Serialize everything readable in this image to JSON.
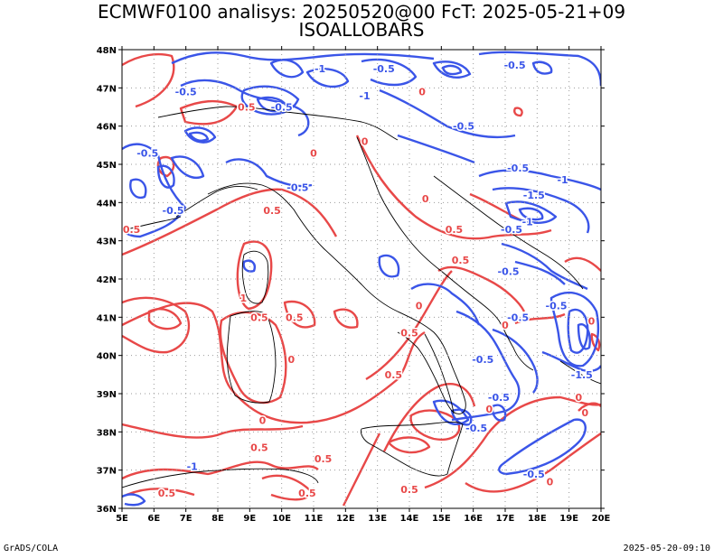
{
  "header": {
    "title_line1": "ECMWF0100 analisys: 20250520@00 FcT: 2025-05-21+09",
    "title_line2": "ISOALLOBARS"
  },
  "footer": {
    "left": "GrADS/COLA",
    "right": "2025-05-20-09:10"
  },
  "axes": {
    "lon_ticks": [
      "5E",
      "6E",
      "7E",
      "8E",
      "9E",
      "10E",
      "11E",
      "12E",
      "13E",
      "14E",
      "15E",
      "16E",
      "17E",
      "18E",
      "19E",
      "20E"
    ],
    "lat_ticks": [
      "48N",
      "47N",
      "46N",
      "45N",
      "44N",
      "43N",
      "42N",
      "41N",
      "40N",
      "39N",
      "38N",
      "37N",
      "36N"
    ]
  },
  "colors": {
    "negative_contour": "#3a55e8",
    "positive_contour": "#e84848",
    "coastline": "#000000",
    "grid": "#9a9a9a"
  },
  "contour_labels": [
    {
      "text": "-0.5",
      "sign": "neg",
      "lon": 10.0,
      "lat": 46.5
    },
    {
      "text": "-1",
      "sign": "neg",
      "lon": 11.2,
      "lat": 47.5
    },
    {
      "text": "-0.5",
      "sign": "neg",
      "lon": 13.2,
      "lat": 47.5
    },
    {
      "text": "-0.5",
      "sign": "neg",
      "lon": 17.3,
      "lat": 47.6
    },
    {
      "text": "-0.5",
      "sign": "neg",
      "lon": 7.0,
      "lat": 46.9
    },
    {
      "text": "0.5",
      "sign": "pos",
      "lon": 8.9,
      "lat": 46.5
    },
    {
      "text": "-1",
      "sign": "neg",
      "lon": 12.6,
      "lat": 46.8
    },
    {
      "text": "0",
      "sign": "pos",
      "lon": 14.4,
      "lat": 46.9
    },
    {
      "text": "-0.5",
      "sign": "neg",
      "lon": 15.7,
      "lat": 46.0
    },
    {
      "text": "-0.5",
      "sign": "neg",
      "lon": 5.8,
      "lat": 45.3
    },
    {
      "text": "-0.5",
      "sign": "neg",
      "lon": 6.6,
      "lat": 43.8
    },
    {
      "text": "0.5",
      "sign": "pos",
      "lon": 5.3,
      "lat": 43.3
    },
    {
      "text": "0",
      "sign": "pos",
      "lon": 11.0,
      "lat": 45.3
    },
    {
      "text": "0",
      "sign": "pos",
      "lon": 12.6,
      "lat": 45.6
    },
    {
      "text": "0.5",
      "sign": "pos",
      "lon": 9.7,
      "lat": 43.8
    },
    {
      "text": "-0.5",
      "sign": "neg",
      "lon": 10.5,
      "lat": 44.4
    },
    {
      "text": "-0.5",
      "sign": "neg",
      "lon": 17.4,
      "lat": 44.9
    },
    {
      "text": "-1",
      "sign": "neg",
      "lon": 18.8,
      "lat": 44.6
    },
    {
      "text": "-1.5",
      "sign": "neg",
      "lon": 17.9,
      "lat": 44.2
    },
    {
      "text": "-1",
      "sign": "neg",
      "lon": 17.7,
      "lat": 43.5
    },
    {
      "text": "0",
      "sign": "pos",
      "lon": 14.5,
      "lat": 44.1
    },
    {
      "text": "0.5",
      "sign": "pos",
      "lon": 15.4,
      "lat": 43.3
    },
    {
      "text": "-0.5",
      "sign": "neg",
      "lon": 17.2,
      "lat": 43.3
    },
    {
      "text": "-0.5",
      "sign": "neg",
      "lon": 17.1,
      "lat": 42.2
    },
    {
      "text": "0.5",
      "sign": "pos",
      "lon": 15.6,
      "lat": 42.5
    },
    {
      "text": "1",
      "sign": "pos",
      "lon": 8.8,
      "lat": 41.5
    },
    {
      "text": "0.5",
      "sign": "pos",
      "lon": 9.3,
      "lat": 41.0
    },
    {
      "text": "0.5",
      "sign": "pos",
      "lon": 10.4,
      "lat": 41.0
    },
    {
      "text": "0",
      "sign": "pos",
      "lon": 14.3,
      "lat": 41.3
    },
    {
      "text": "0.5",
      "sign": "pos",
      "lon": 14.0,
      "lat": 40.6
    },
    {
      "text": "0",
      "sign": "pos",
      "lon": 10.3,
      "lat": 39.9
    },
    {
      "text": "0.5",
      "sign": "pos",
      "lon": 13.5,
      "lat": 39.5
    },
    {
      "text": "-0.5",
      "sign": "neg",
      "lon": 16.3,
      "lat": 39.9
    },
    {
      "text": "-0.5",
      "sign": "neg",
      "lon": 17.4,
      "lat": 41.0
    },
    {
      "text": "0",
      "sign": "pos",
      "lon": 17.0,
      "lat": 40.8
    },
    {
      "text": "-1.5",
      "sign": "neg",
      "lon": 19.4,
      "lat": 39.5
    },
    {
      "text": "-0.5",
      "sign": "neg",
      "lon": 18.6,
      "lat": 41.3
    },
    {
      "text": "0",
      "sign": "pos",
      "lon": 19.7,
      "lat": 40.9
    },
    {
      "text": "0",
      "sign": "pos",
      "lon": 9.4,
      "lat": 38.3
    },
    {
      "text": "0.5",
      "sign": "pos",
      "lon": 9.3,
      "lat": 37.6
    },
    {
      "text": "0.5",
      "sign": "pos",
      "lon": 11.3,
      "lat": 37.3
    },
    {
      "text": "0",
      "sign": "pos",
      "lon": 16.5,
      "lat": 38.6
    },
    {
      "text": "-0.5",
      "sign": "neg",
      "lon": 16.1,
      "lat": 38.1
    },
    {
      "text": "-0.5",
      "sign": "neg",
      "lon": 16.8,
      "lat": 38.9
    },
    {
      "text": "0",
      "sign": "pos",
      "lon": 19.3,
      "lat": 38.9
    },
    {
      "text": "-0.5",
      "sign": "neg",
      "lon": 17.9,
      "lat": 36.9
    },
    {
      "text": "-1",
      "sign": "neg",
      "lon": 7.2,
      "lat": 37.1
    },
    {
      "text": "0.5",
      "sign": "pos",
      "lon": 6.4,
      "lat": 36.4
    },
    {
      "text": "0.5",
      "sign": "pos",
      "lon": 10.8,
      "lat": 36.4
    },
    {
      "text": "0.5",
      "sign": "pos",
      "lon": 14.0,
      "lat": 36.5
    },
    {
      "text": "0",
      "sign": "pos",
      "lon": 18.4,
      "lat": 36.7
    },
    {
      "text": "0",
      "sign": "pos",
      "lon": 19.5,
      "lat": 38.5
    }
  ]
}
